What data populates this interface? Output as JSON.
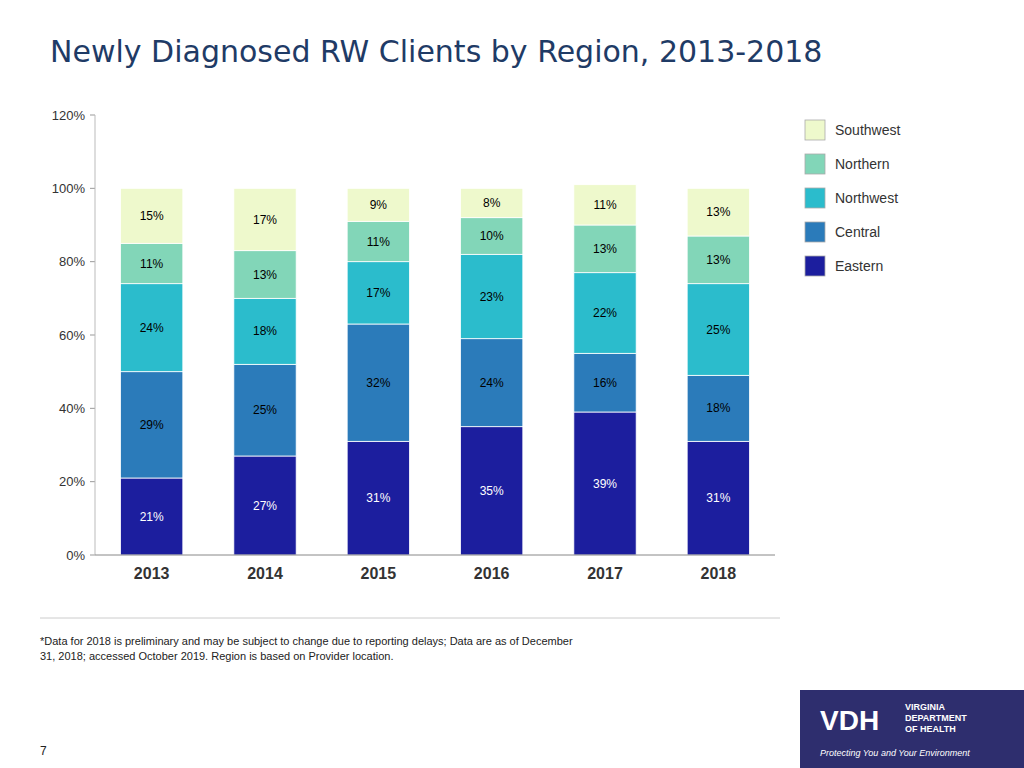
{
  "chart_data": {
    "type": "bar",
    "stacked": true,
    "data_labels": true,
    "grid": false,
    "legend": "right",
    "title": "Newly Diagnosed RW Clients by Region, 2013-2018",
    "categories": [
      "2013",
      "2014",
      "2015",
      "2016",
      "2017",
      "2018"
    ],
    "series": [
      {
        "name": "Eastern",
        "color": "#1c1e9e",
        "values": [
          21,
          27,
          31,
          35,
          39,
          31
        ],
        "value_labels": [
          "21%",
          "27%",
          "31%",
          "35%",
          "39%",
          "31%"
        ]
      },
      {
        "name": "Central",
        "color": "#2b7bba",
        "values": [
          29,
          25,
          32,
          24,
          16,
          18
        ],
        "value_labels": [
          "29%",
          "25%",
          "32%",
          "24%",
          "16%",
          "18%"
        ]
      },
      {
        "name": "Northwest",
        "color": "#2bbccc",
        "values": [
          24,
          18,
          17,
          23,
          22,
          25
        ],
        "value_labels": [
          "24%",
          "18%",
          "17%",
          "23%",
          "22%",
          "25%"
        ]
      },
      {
        "name": "Northern",
        "color": "#82d6b8",
        "values": [
          11,
          13,
          11,
          10,
          13,
          13
        ],
        "value_labels": [
          "11%",
          "13%",
          "11%",
          "10%",
          "13%",
          "13%"
        ]
      },
      {
        "name": "Southwest",
        "color": "#eef9cc",
        "values": [
          15,
          17,
          9,
          8,
          11,
          13
        ],
        "value_labels": [
          "15%",
          "17%",
          "9%",
          "8%",
          "11%",
          "13%"
        ]
      }
    ],
    "ylim": [
      0,
      120
    ],
    "yticks": [
      {
        "value": 0,
        "label": "0%"
      },
      {
        "value": 20,
        "label": "20%"
      },
      {
        "value": 40,
        "label": "40%"
      },
      {
        "value": 60,
        "label": "60%"
      },
      {
        "value": 80,
        "label": "80%"
      },
      {
        "value": 100,
        "label": "100%"
      },
      {
        "value": 120,
        "label": "120%"
      }
    ],
    "annotations": [
      "*Data for 2018 is preliminary and may be subject to change due to reporting delays; Data are as of December\n31, 2018; accessed October 2019. Region is based on Provider location.",
      "7",
      "VDH",
      "VIRGINIA",
      "DEPARTMENT",
      "OF HEALTH",
      "Protecting You and Your Environment"
    ]
  }
}
